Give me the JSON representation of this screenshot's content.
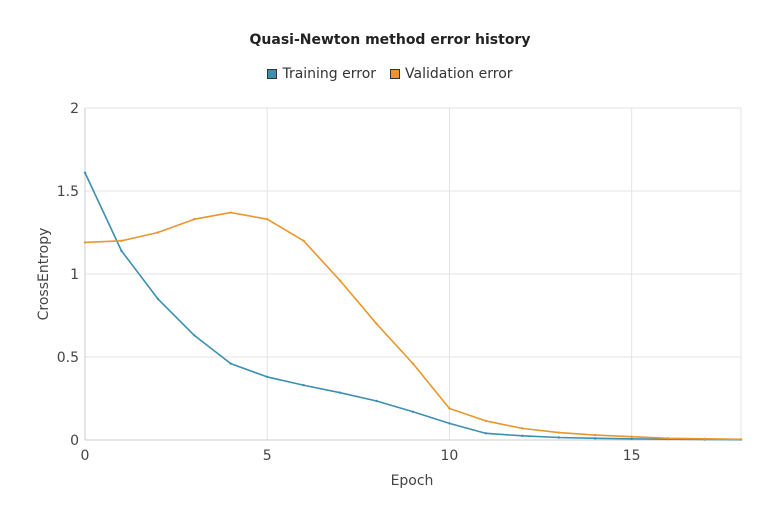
{
  "chart_data": {
    "type": "line",
    "title": "Quasi-Newton method error history",
    "xlabel": "Epoch",
    "ylabel": "CrossEntropy",
    "xlim": [
      0,
      18
    ],
    "ylim": [
      0,
      2
    ],
    "xticks": [
      0,
      5,
      10,
      15
    ],
    "yticks": [
      0,
      0.5,
      1,
      1.5,
      2
    ],
    "ytick_labels": [
      "0",
      "0.5",
      "1",
      "1.5",
      "2"
    ],
    "grid": true,
    "legend_position": "top-center",
    "series": [
      {
        "name": "Training error",
        "color": "#3d8fb0",
        "x": [
          0,
          1,
          2,
          3,
          4,
          5,
          6,
          7,
          8,
          9,
          10,
          11,
          12,
          13,
          14,
          15,
          16,
          17,
          18
        ],
        "y": [
          1.61,
          1.14,
          0.85,
          0.63,
          0.46,
          0.38,
          0.33,
          0.285,
          0.235,
          0.17,
          0.1,
          0.04,
          0.025,
          0.015,
          0.01,
          0.007,
          0.005,
          0.003,
          0.002
        ]
      },
      {
        "name": "Validation error",
        "color": "#e8972c",
        "x": [
          0,
          1,
          2,
          3,
          4,
          5,
          6,
          7,
          8,
          9,
          10,
          11,
          12,
          13,
          14,
          15,
          16,
          17,
          18
        ],
        "y": [
          1.19,
          1.2,
          1.25,
          1.33,
          1.37,
          1.33,
          1.2,
          0.96,
          0.7,
          0.46,
          0.19,
          0.115,
          0.07,
          0.045,
          0.03,
          0.02,
          0.01,
          0.007,
          0.004
        ]
      }
    ]
  }
}
